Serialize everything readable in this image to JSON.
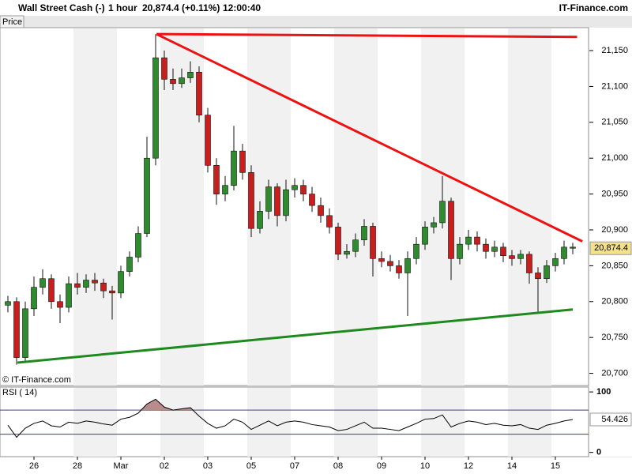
{
  "chart_data": {
    "type": "candlestick",
    "title": "Wall Street Cash (-)",
    "interval": "1 hour",
    "quote": "20,874.4 (+0.11%)",
    "time": "12:00:40",
    "source": "IT-Finance.com",
    "panel_label": "Price",
    "watermark": "© IT-Finance.com",
    "categories": [
      null,
      null,
      null,
      "26",
      null,
      null,
      null,
      null,
      "28",
      null,
      null,
      null,
      null,
      "Mar",
      null,
      null,
      null,
      null,
      "02",
      null,
      null,
      null,
      null,
      "03",
      null,
      null,
      null,
      null,
      "05",
      null,
      null,
      null,
      null,
      "07",
      null,
      null,
      null,
      null,
      "08",
      null,
      null,
      null,
      null,
      "09",
      null,
      null,
      null,
      null,
      "10",
      null,
      null,
      null,
      null,
      "12",
      null,
      null,
      null,
      null,
      "14",
      null,
      null,
      null,
      null,
      "15",
      null,
      null
    ],
    "open": [
      20795,
      20800,
      20722,
      20790,
      20820,
      20832,
      20800,
      20792,
      20825,
      20820,
      20830,
      20826,
      20815,
      20812,
      20842,
      20862,
      20895,
      21000,
      21140,
      21110,
      21104,
      21112,
      21120,
      21060,
      20990,
      20950,
      20962,
      21010,
      20980,
      20902,
      20926,
      20960,
      20920,
      20956,
      20962,
      20950,
      20934,
      20920,
      20904,
      20866,
      20870,
      20886,
      20905,
      20860,
      20856,
      20850,
      20840,
      20860,
      20880,
      20904,
      20910,
      20940,
      20860,
      20880,
      20890,
      20880,
      20870,
      20876,
      20864,
      20860,
      20866,
      20840,
      20832,
      20850,
      20860,
      20876
    ],
    "high": [
      20808,
      20806,
      20800,
      20835,
      20845,
      20838,
      20810,
      20835,
      20840,
      20838,
      20840,
      20832,
      20822,
      20850,
      20870,
      20905,
      21030,
      21173,
      21150,
      21125,
      21125,
      21135,
      21128,
      21070,
      21000,
      20975,
      21045,
      21020,
      20990,
      20940,
      20970,
      20965,
      20970,
      20972,
      20970,
      20960,
      20945,
      20930,
      20910,
      20880,
      20895,
      20915,
      20910,
      20870,
      20865,
      20858,
      20870,
      20890,
      20912,
      20918,
      20975,
      20945,
      20890,
      20900,
      20898,
      20888,
      20885,
      20882,
      20872,
      20872,
      20870,
      20848,
      20858,
      20868,
      20885,
      20882
    ],
    "low": [
      20785,
      20712,
      20715,
      20780,
      20810,
      20790,
      20770,
      20785,
      20810,
      20812,
      20815,
      20805,
      20775,
      20805,
      20835,
      20855,
      20890,
      20990,
      21095,
      21095,
      21098,
      21105,
      21050,
      20980,
      20935,
      20940,
      20955,
      20970,
      20890,
      20895,
      20915,
      20905,
      20912,
      20945,
      20940,
      20925,
      20910,
      20895,
      20858,
      20860,
      20862,
      20878,
      20835,
      20848,
      20842,
      20832,
      20780,
      20852,
      20872,
      20895,
      20902,
      20830,
      20852,
      20872,
      20870,
      20860,
      20862,
      20855,
      20850,
      20852,
      20825,
      20785,
      20826,
      20842,
      20852,
      20866
    ],
    "close": [
      20800,
      20722,
      20790,
      20820,
      20832,
      20800,
      20792,
      20825,
      20820,
      20830,
      20826,
      20815,
      20812,
      20842,
      20862,
      20895,
      21000,
      21140,
      21110,
      21104,
      21112,
      21120,
      21060,
      20990,
      20950,
      20962,
      21010,
      20980,
      20902,
      20926,
      20960,
      20920,
      20956,
      20962,
      20950,
      20934,
      20920,
      20904,
      20866,
      20870,
      20886,
      20905,
      20860,
      20856,
      20850,
      20840,
      20860,
      20880,
      20904,
      20910,
      20940,
      20860,
      20880,
      20890,
      20880,
      20870,
      20876,
      20864,
      20860,
      20866,
      20840,
      20832,
      20850,
      20860,
      20876,
      20874.4
    ],
    "up_color": "#2e8b2e",
    "down_color": "#c81e1e",
    "ylim": [
      20683,
      21182
    ],
    "yticks": [
      {
        "value": 20700,
        "label": "20,700"
      },
      {
        "value": 20750,
        "label": "20,750"
      },
      {
        "value": 20800,
        "label": "20,800"
      },
      {
        "value": 20850,
        "label": "20,850"
      },
      {
        "value": 20900,
        "label": "20,900"
      },
      {
        "value": 20950,
        "label": "20,950"
      },
      {
        "value": 21000,
        "label": "21,000"
      },
      {
        "value": 21050,
        "label": "21,050"
      },
      {
        "value": 21100,
        "label": "21,100"
      },
      {
        "value": 21150,
        "label": "21,150"
      }
    ],
    "last_price": {
      "value": 20874.4,
      "label": "20,874.4"
    },
    "trendlines": [
      {
        "color": "#ee1111",
        "points": [
          [
            17.1,
            21173
          ],
          [
            65.5,
            21169
          ]
        ]
      },
      {
        "color": "#ee1111",
        "points": [
          [
            17.1,
            21173
          ],
          [
            66.1,
            20884
          ]
        ]
      },
      {
        "color": "#1e8a1e",
        "points": [
          [
            1.1,
            20715
          ],
          [
            65,
            20789
          ]
        ]
      }
    ],
    "rsi": {
      "label": "RSI ( 14)",
      "color": "#000000",
      "fill": "#b98c8c",
      "values": [
        45,
        25,
        40,
        48,
        52,
        44,
        42,
        50,
        48,
        52,
        50,
        47,
        45,
        55,
        58,
        65,
        80,
        88,
        75,
        70,
        72,
        74,
        60,
        48,
        40,
        44,
        55,
        50,
        38,
        45,
        52,
        44,
        50,
        52,
        50,
        46,
        44,
        42,
        36,
        38,
        44,
        50,
        40,
        40,
        38,
        36,
        42,
        48,
        55,
        56,
        62,
        42,
        48,
        52,
        50,
        46,
        48,
        45,
        44,
        46,
        40,
        38,
        45,
        48,
        52,
        54.426
      ],
      "ylim": [
        -7,
        108
      ],
      "yticks": [
        0,
        100
      ],
      "levels": [
        30,
        70
      ],
      "level_color": "#3a3a8a"
    }
  }
}
